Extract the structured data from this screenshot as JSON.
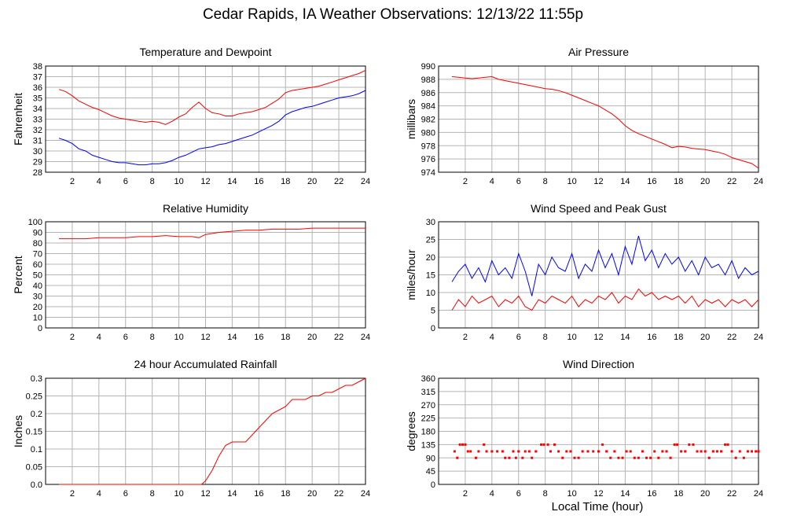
{
  "page": {
    "title": "Cedar Rapids, IA Weather Observations: 12/13/22 11:55p",
    "xlabel": "Local Time (hour)"
  },
  "chart_data": [
    {
      "type": "line",
      "title": "Temperature and Dewpoint",
      "xlabel": "",
      "ylabel": "Fahrenheit",
      "xlim": [
        0,
        24
      ],
      "ylim": [
        28,
        38
      ],
      "xticks": [
        2,
        4,
        6,
        8,
        10,
        12,
        14,
        16,
        18,
        20,
        22,
        24
      ],
      "yticks": [
        28,
        29,
        30,
        31,
        32,
        33,
        34,
        35,
        36,
        37,
        38
      ],
      "grid": true,
      "x": [
        1,
        1.5,
        2,
        2.5,
        3,
        3.5,
        4,
        4.5,
        5,
        5.5,
        6,
        6.5,
        7,
        7.5,
        8,
        8.5,
        9,
        9.5,
        10,
        10.5,
        11,
        11.5,
        12,
        12.5,
        13,
        13.5,
        14,
        14.5,
        15,
        15.5,
        16,
        16.5,
        17,
        17.5,
        18,
        18.5,
        19,
        19.5,
        20,
        20.5,
        21,
        21.5,
        22,
        22.5,
        23,
        23.5,
        24
      ],
      "series": [
        {
          "name": "",
          "color": "#ff0000",
          "values": [
            35.8,
            35.6,
            35.2,
            34.7,
            34.4,
            34.1,
            33.9,
            33.6,
            33.3,
            33.1,
            33.0,
            32.9,
            32.8,
            32.7,
            32.8,
            32.7,
            32.5,
            32.8,
            33.2,
            33.5,
            34.1,
            34.6,
            34.0,
            33.6,
            33.5,
            33.3,
            33.3,
            33.5,
            33.6,
            33.7,
            33.9,
            34.1,
            34.5,
            34.9,
            35.5,
            35.7,
            35.8,
            35.9,
            36.0,
            36.1,
            36.3,
            36.5,
            36.7,
            36.9,
            37.1,
            37.3,
            37.6
          ]
        },
        {
          "name": "",
          "color": "#0000ff",
          "values": [
            31.2,
            31.0,
            30.7,
            30.2,
            30.0,
            29.6,
            29.4,
            29.2,
            29.0,
            28.9,
            28.9,
            28.8,
            28.7,
            28.7,
            28.8,
            28.8,
            28.9,
            29.1,
            29.4,
            29.6,
            29.9,
            30.2,
            30.3,
            30.4,
            30.6,
            30.7,
            30.9,
            31.1,
            31.3,
            31.5,
            31.8,
            32.1,
            32.4,
            32.8,
            33.4,
            33.7,
            33.9,
            34.1,
            34.2,
            34.4,
            34.6,
            34.8,
            35.0,
            35.1,
            35.2,
            35.4,
            35.7
          ]
        }
      ]
    },
    {
      "type": "line",
      "title": "Air Pressure",
      "xlabel": "",
      "ylabel": "millibars",
      "xlim": [
        0,
        24
      ],
      "ylim": [
        974,
        990
      ],
      "xticks": [
        2,
        4,
        6,
        8,
        10,
        12,
        14,
        16,
        18,
        20,
        22,
        24
      ],
      "yticks": [
        974,
        976,
        978,
        980,
        982,
        984,
        986,
        988,
        990
      ],
      "grid": true,
      "x": [
        1,
        1.5,
        2,
        2.5,
        3,
        3.5,
        4,
        4.5,
        5,
        5.5,
        6,
        6.5,
        7,
        7.5,
        8,
        8.5,
        9,
        9.5,
        10,
        10.5,
        11,
        11.5,
        12,
        12.5,
        13,
        13.5,
        14,
        14.5,
        15,
        15.5,
        16,
        16.5,
        17,
        17.5,
        18,
        18.5,
        19,
        19.5,
        20,
        20.5,
        21,
        21.5,
        22,
        22.5,
        23,
        23.5,
        24
      ],
      "series": [
        {
          "name": "",
          "color": "#ff0000",
          "values": [
            988.4,
            988.3,
            988.2,
            988.1,
            988.2,
            988.3,
            988.4,
            988.0,
            987.8,
            987.6,
            987.4,
            987.2,
            987.0,
            986.8,
            986.6,
            986.5,
            986.3,
            986.0,
            985.6,
            985.2,
            984.8,
            984.4,
            984.0,
            983.4,
            982.8,
            982.0,
            981.0,
            980.3,
            979.8,
            979.4,
            979.0,
            978.6,
            978.2,
            977.7,
            977.9,
            977.8,
            977.6,
            977.5,
            977.4,
            977.2,
            977.0,
            976.7,
            976.2,
            975.9,
            975.6,
            975.3,
            974.6
          ]
        }
      ]
    },
    {
      "type": "line",
      "title": "Relative Humidity",
      "xlabel": "",
      "ylabel": "Percent",
      "xlim": [
        0,
        24
      ],
      "ylim": [
        0,
        100
      ],
      "xticks": [
        2,
        4,
        6,
        8,
        10,
        12,
        14,
        16,
        18,
        20,
        22,
        24
      ],
      "yticks": [
        0,
        10,
        20,
        30,
        40,
        50,
        60,
        70,
        80,
        90,
        100
      ],
      "grid": true,
      "x": [
        1,
        2,
        3,
        4,
        5,
        6,
        7,
        8,
        9,
        10,
        11,
        11.5,
        12,
        13,
        14,
        15,
        16,
        17,
        18,
        19,
        20,
        21,
        22,
        23,
        24
      ],
      "series": [
        {
          "name": "",
          "color": "#ff0000",
          "values": [
            84,
            84,
            84,
            85,
            85,
            85,
            86,
            86,
            87,
            86,
            86,
            85,
            88,
            90,
            91,
            92,
            92,
            93,
            93,
            93,
            94,
            94,
            94,
            94,
            94
          ]
        }
      ]
    },
    {
      "type": "line",
      "title": "Wind Speed and Peak Gust",
      "xlabel": "",
      "ylabel": "miles/hour",
      "xlim": [
        0,
        24
      ],
      "ylim": [
        0,
        30
      ],
      "xticks": [
        2,
        4,
        6,
        8,
        10,
        12,
        14,
        16,
        18,
        20,
        22,
        24
      ],
      "yticks": [
        0,
        5,
        10,
        15,
        20,
        25,
        30
      ],
      "grid": true,
      "x": [
        1,
        1.5,
        2,
        2.5,
        3,
        3.5,
        4,
        4.5,
        5,
        5.5,
        6,
        6.5,
        7,
        7.5,
        8,
        8.5,
        9,
        9.5,
        10,
        10.5,
        11,
        11.5,
        12,
        12.5,
        13,
        13.5,
        14,
        14.5,
        15,
        15.5,
        16,
        16.5,
        17,
        17.5,
        18,
        18.5,
        19,
        19.5,
        20,
        20.5,
        21,
        21.5,
        22,
        22.5,
        23,
        23.5,
        24
      ],
      "series": [
        {
          "name": "",
          "color": "#0000ff",
          "values": [
            13,
            16,
            18,
            14,
            17,
            13,
            19,
            15,
            17,
            14,
            21,
            16,
            9,
            18,
            15,
            20,
            17,
            16,
            21,
            14,
            18,
            16,
            22,
            17,
            21,
            15,
            23,
            18,
            26,
            19,
            22,
            17,
            21,
            18,
            20,
            16,
            19,
            15,
            20,
            17,
            18,
            15,
            19,
            14,
            17,
            15,
            16
          ]
        },
        {
          "name": "",
          "color": "#ff0000",
          "values": [
            5,
            8,
            6,
            9,
            7,
            8,
            9,
            6,
            8,
            7,
            9,
            6,
            5,
            8,
            7,
            9,
            8,
            7,
            9,
            6,
            8,
            7,
            9,
            8,
            10,
            7,
            9,
            8,
            11,
            9,
            10,
            8,
            9,
            8,
            9,
            7,
            9,
            6,
            8,
            7,
            8,
            6,
            8,
            7,
            8,
            6,
            8
          ]
        }
      ]
    },
    {
      "type": "line",
      "title": "24 hour Accumulated Rainfall",
      "xlabel": "",
      "ylabel": "Inches",
      "xlim": [
        0,
        24
      ],
      "ylim": [
        0,
        0.3
      ],
      "xticks": [
        2,
        4,
        6,
        8,
        10,
        12,
        14,
        16,
        18,
        20,
        22,
        24
      ],
      "yticks": [
        0.0,
        0.05,
        0.1,
        0.15,
        0.2,
        0.25,
        0.3
      ],
      "ytick_labels": [
        "0.0",
        "0.05",
        "0.1",
        "0.15",
        "0.2",
        "0.25",
        "0.3"
      ],
      "grid": true,
      "x": [
        1,
        11.7,
        12,
        12.5,
        13,
        13.5,
        14,
        14.5,
        15,
        15.5,
        16,
        16.5,
        17,
        17.5,
        18,
        18.5,
        19,
        19.5,
        20,
        20.5,
        21,
        21.5,
        22,
        22.5,
        23,
        23.5,
        24
      ],
      "series": [
        {
          "name": "",
          "color": "#ff0000",
          "values": [
            0.0,
            0.0,
            0.01,
            0.04,
            0.08,
            0.11,
            0.12,
            0.12,
            0.12,
            0.14,
            0.16,
            0.18,
            0.2,
            0.21,
            0.22,
            0.24,
            0.24,
            0.24,
            0.25,
            0.25,
            0.26,
            0.26,
            0.27,
            0.28,
            0.28,
            0.29,
            0.3
          ]
        }
      ]
    },
    {
      "type": "scatter",
      "title": "Wind Direction",
      "xlabel": "Local Time (hour)",
      "ylabel": "degrees",
      "xlim": [
        0,
        24
      ],
      "ylim": [
        0,
        360
      ],
      "xticks": [
        2,
        4,
        6,
        8,
        10,
        12,
        14,
        16,
        18,
        20,
        22,
        24
      ],
      "yticks": [
        0,
        45,
        90,
        135,
        180,
        225,
        270,
        315,
        360
      ],
      "grid": true,
      "series": [
        {
          "name": "",
          "color": "#ff0000",
          "points": [
            [
              1.2,
              112
            ],
            [
              1.4,
              90
            ],
            [
              1.6,
              135
            ],
            [
              1.8,
              135
            ],
            [
              2.0,
              135
            ],
            [
              2.2,
              112
            ],
            [
              2.4,
              112
            ],
            [
              2.8,
              90
            ],
            [
              3.0,
              112
            ],
            [
              3.4,
              135
            ],
            [
              3.6,
              112
            ],
            [
              4.0,
              112
            ],
            [
              4.4,
              112
            ],
            [
              4.8,
              112
            ],
            [
              5.0,
              90
            ],
            [
              5.3,
              90
            ],
            [
              5.6,
              112
            ],
            [
              5.8,
              90
            ],
            [
              6.0,
              112
            ],
            [
              6.3,
              90
            ],
            [
              6.5,
              112
            ],
            [
              6.8,
              112
            ],
            [
              7.0,
              90
            ],
            [
              7.3,
              112
            ],
            [
              7.7,
              135
            ],
            [
              7.9,
              135
            ],
            [
              8.2,
              135
            ],
            [
              8.4,
              112
            ],
            [
              8.7,
              135
            ],
            [
              9.0,
              112
            ],
            [
              9.3,
              90
            ],
            [
              9.6,
              112
            ],
            [
              9.9,
              112
            ],
            [
              10.2,
              90
            ],
            [
              10.5,
              90
            ],
            [
              10.8,
              112
            ],
            [
              11.2,
              112
            ],
            [
              11.6,
              112
            ],
            [
              12.0,
              112
            ],
            [
              12.3,
              135
            ],
            [
              12.6,
              112
            ],
            [
              12.9,
              90
            ],
            [
              13.2,
              112
            ],
            [
              13.5,
              90
            ],
            [
              13.8,
              90
            ],
            [
              14.1,
              112
            ],
            [
              14.4,
              112
            ],
            [
              14.7,
              90
            ],
            [
              15.0,
              90
            ],
            [
              15.3,
              112
            ],
            [
              15.6,
              90
            ],
            [
              15.9,
              90
            ],
            [
              16.2,
              112
            ],
            [
              16.5,
              90
            ],
            [
              16.8,
              112
            ],
            [
              17.1,
              112
            ],
            [
              17.4,
              90
            ],
            [
              17.7,
              135
            ],
            [
              17.9,
              135
            ],
            [
              18.2,
              112
            ],
            [
              18.5,
              112
            ],
            [
              18.8,
              135
            ],
            [
              19.1,
              135
            ],
            [
              19.4,
              112
            ],
            [
              19.7,
              112
            ],
            [
              20.0,
              112
            ],
            [
              20.3,
              90
            ],
            [
              20.6,
              112
            ],
            [
              20.9,
              112
            ],
            [
              21.2,
              112
            ],
            [
              21.5,
              135
            ],
            [
              21.7,
              135
            ],
            [
              22.0,
              112
            ],
            [
              22.3,
              90
            ],
            [
              22.6,
              112
            ],
            [
              22.9,
              90
            ],
            [
              23.2,
              112
            ],
            [
              23.5,
              112
            ],
            [
              23.8,
              112
            ],
            [
              24.0,
              112
            ]
          ]
        }
      ]
    }
  ]
}
